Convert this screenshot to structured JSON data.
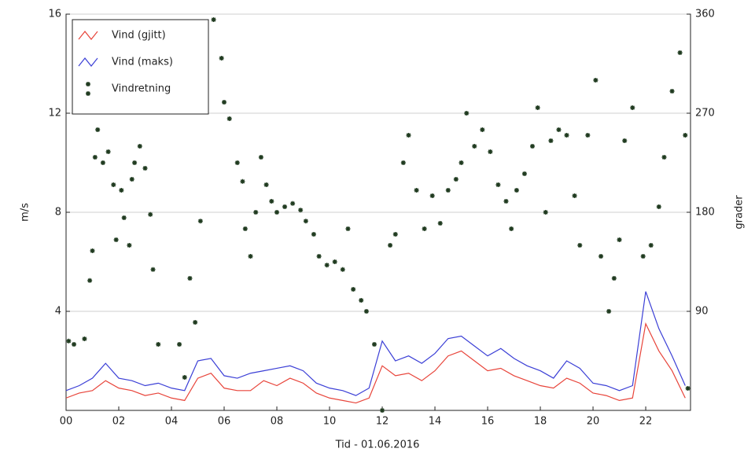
{
  "chart_data": {
    "type": "line",
    "xlabel": "Tid - 01.06.2016",
    "ylabel": "m/s",
    "y2label": "grader",
    "xlim": [
      0,
      23.7
    ],
    "ylim": [
      0,
      16
    ],
    "y2lim": [
      0,
      360
    ],
    "xticks": [
      {
        "value": 0,
        "label": "00"
      },
      {
        "value": 2,
        "label": "02"
      },
      {
        "value": 4,
        "label": "04"
      },
      {
        "value": 6,
        "label": "06"
      },
      {
        "value": 8,
        "label": "08"
      },
      {
        "value": 10,
        "label": "10"
      },
      {
        "value": 12,
        "label": "12"
      },
      {
        "value": 14,
        "label": "14"
      },
      {
        "value": 16,
        "label": "16"
      },
      {
        "value": 18,
        "label": "18"
      },
      {
        "value": 20,
        "label": "20"
      },
      {
        "value": 22,
        "label": "22"
      }
    ],
    "yticks": [
      4,
      8,
      12,
      16
    ],
    "y2ticks": [
      90,
      180,
      270,
      360
    ],
    "grid": true,
    "legend": "upper left",
    "series": [
      {
        "name": "Vind (gjitt)",
        "type": "line",
        "color": "#e8443a",
        "x": [
          0,
          0.5,
          1,
          1.5,
          2,
          2.5,
          3,
          3.5,
          4,
          4.5,
          5,
          5.5,
          6,
          6.5,
          7,
          7.5,
          8,
          8.5,
          9,
          9.5,
          10,
          10.5,
          11,
          11.5,
          12,
          12.5,
          13,
          13.5,
          14,
          14.5,
          15,
          15.5,
          16,
          16.5,
          17,
          17.5,
          18,
          18.5,
          19,
          19.5,
          20,
          20.5,
          21,
          21.5,
          22,
          22.5,
          23,
          23.5
        ],
        "values": [
          0.5,
          0.7,
          0.8,
          1.2,
          0.9,
          0.8,
          0.6,
          0.7,
          0.5,
          0.4,
          1.3,
          1.5,
          0.9,
          0.8,
          0.8,
          1.2,
          1.0,
          1.3,
          1.1,
          0.7,
          0.5,
          0.4,
          0.3,
          0.5,
          1.8,
          1.4,
          1.5,
          1.2,
          1.6,
          2.2,
          2.4,
          2.0,
          1.6,
          1.7,
          1.4,
          1.2,
          1.0,
          0.9,
          1.3,
          1.1,
          0.7,
          0.6,
          0.4,
          0.5,
          3.5,
          2.4,
          1.6,
          0.5
        ]
      },
      {
        "name": "Vind (maks)",
        "type": "line",
        "color": "#3b3fd6",
        "x": [
          0,
          0.5,
          1,
          1.5,
          2,
          2.5,
          3,
          3.5,
          4,
          4.5,
          5,
          5.5,
          6,
          6.5,
          7,
          7.5,
          8,
          8.5,
          9,
          9.5,
          10,
          10.5,
          11,
          11.5,
          12,
          12.5,
          13,
          13.5,
          14,
          14.5,
          15,
          15.5,
          16,
          16.5,
          17,
          17.5,
          18,
          18.5,
          19,
          19.5,
          20,
          20.5,
          21,
          21.5,
          22,
          22.5,
          23,
          23.5
        ],
        "values": [
          0.8,
          1.0,
          1.3,
          1.9,
          1.3,
          1.2,
          1.0,
          1.1,
          0.9,
          0.8,
          2.0,
          2.1,
          1.4,
          1.3,
          1.5,
          1.6,
          1.7,
          1.8,
          1.6,
          1.1,
          0.9,
          0.8,
          0.6,
          0.9,
          2.8,
          2.0,
          2.2,
          1.9,
          2.3,
          2.9,
          3.0,
          2.6,
          2.2,
          2.5,
          2.1,
          1.8,
          1.6,
          1.3,
          2.0,
          1.7,
          1.1,
          1.0,
          0.8,
          1.0,
          4.8,
          3.3,
          2.2,
          1.0
        ]
      },
      {
        "name": "Vindretning",
        "type": "scatter",
        "color": "#1f3a1f",
        "axis": "y2",
        "x": [
          0.1,
          0.3,
          0.7,
          0.9,
          1.0,
          1.1,
          1.2,
          1.4,
          1.6,
          1.8,
          1.9,
          2.1,
          2.2,
          2.4,
          2.5,
          2.6,
          2.8,
          3.0,
          3.2,
          3.3,
          3.5,
          4.3,
          4.5,
          4.7,
          4.9,
          5.1,
          5.6,
          5.9,
          6.0,
          6.2,
          6.5,
          6.7,
          6.8,
          7.0,
          7.2,
          7.4,
          7.6,
          7.8,
          8.0,
          8.3,
          8.6,
          8.9,
          9.1,
          9.4,
          9.6,
          9.9,
          10.2,
          10.5,
          10.7,
          10.9,
          11.2,
          11.4,
          11.7,
          12.0,
          12.3,
          12.5,
          12.8,
          13.0,
          13.3,
          13.6,
          13.9,
          14.2,
          14.5,
          14.8,
          15.0,
          15.2,
          15.5,
          15.8,
          16.1,
          16.4,
          16.7,
          16.9,
          17.1,
          17.4,
          17.7,
          17.9,
          18.2,
          18.4,
          18.7,
          19.0,
          19.3,
          19.5,
          19.8,
          20.1,
          20.3,
          20.6,
          20.8,
          21.0,
          21.2,
          21.5,
          21.9,
          22.2,
          22.5,
          22.7,
          23.0,
          23.3,
          23.5,
          23.6
        ],
        "values": [
          63,
          60,
          65,
          118,
          145,
          230,
          255,
          225,
          235,
          205,
          155,
          200,
          175,
          150,
          210,
          225,
          240,
          220,
          178,
          128,
          60,
          60,
          30,
          120,
          80,
          172,
          355,
          320,
          280,
          265,
          225,
          208,
          165,
          140,
          180,
          230,
          205,
          190,
          180,
          185,
          188,
          182,
          172,
          160,
          140,
          132,
          135,
          128,
          165,
          110,
          100,
          90,
          60,
          0,
          150,
          160,
          225,
          250,
          200,
          165,
          195,
          170,
          200,
          210,
          225,
          270,
          240,
          255,
          235,
          205,
          190,
          165,
          200,
          215,
          240,
          275,
          180,
          245,
          255,
          250,
          195,
          150,
          250,
          300,
          140,
          90,
          120,
          155,
          245,
          275,
          140,
          150,
          185,
          230,
          290,
          325,
          250,
          20
        ]
      }
    ]
  }
}
